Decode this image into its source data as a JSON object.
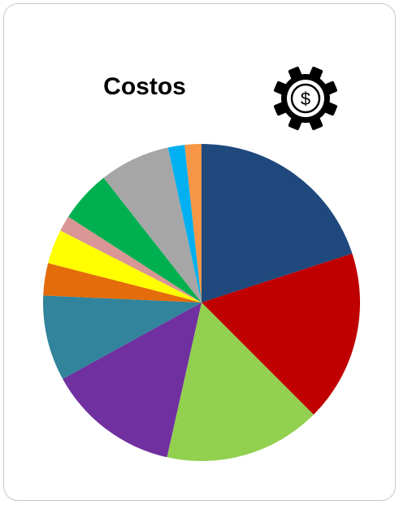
{
  "chart_data": {
    "type": "pie",
    "title": "Costos",
    "start_angle_deg": 0,
    "direction": "clockwise",
    "slices": [
      {
        "value": 20.0,
        "color": "#1f497d"
      },
      {
        "value": 17.5,
        "color": "#c00000"
      },
      {
        "value": 16.0,
        "color": "#92d050"
      },
      {
        "value": 13.5,
        "color": "#7030a0"
      },
      {
        "value": 8.7,
        "color": "#31849b"
      },
      {
        "value": 3.3,
        "color": "#e46c0a"
      },
      {
        "value": 3.5,
        "color": "#ffff00"
      },
      {
        "value": 1.6,
        "color": "#d99694"
      },
      {
        "value": 5.3,
        "color": "#00b050"
      },
      {
        "value": 7.2,
        "color": "#a6a6a6"
      },
      {
        "value": 1.7,
        "color": "#00b0f0"
      },
      {
        "value": 1.7,
        "color": "#f79646"
      }
    ]
  },
  "header": {
    "icon": "gear-dollar-icon"
  }
}
